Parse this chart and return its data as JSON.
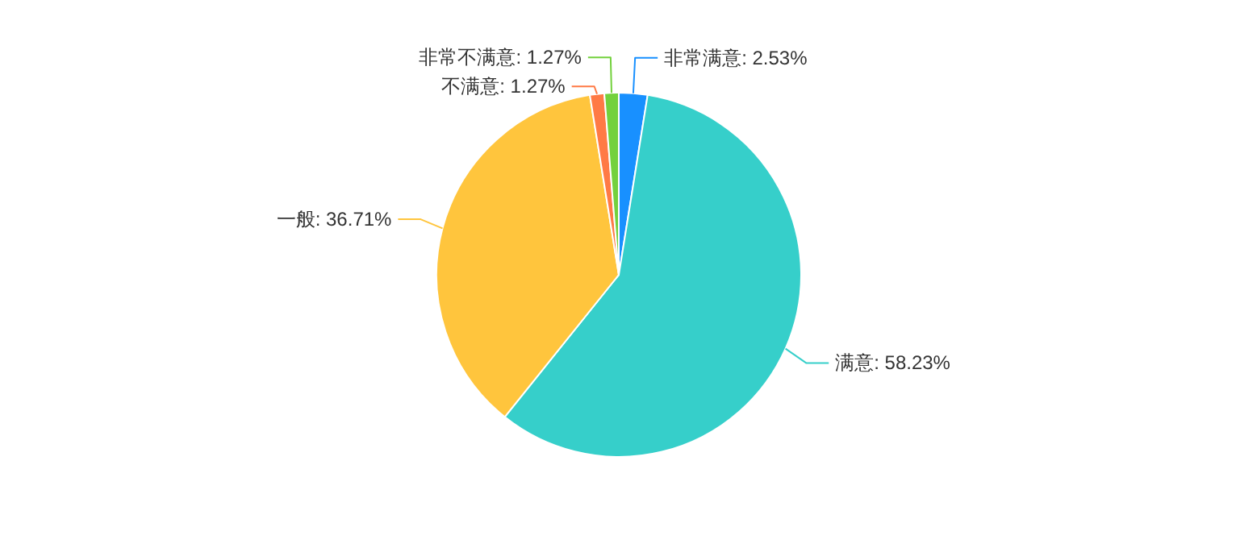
{
  "chart_data": {
    "type": "pie",
    "categories": [
      "非常满意",
      "满意",
      "一般",
      "不满意",
      "非常不满意"
    ],
    "values": [
      2.53,
      58.23,
      36.71,
      1.27,
      1.27
    ],
    "value_labels": [
      "2.53%",
      "58.23%",
      "36.71%",
      "1.27%",
      "1.27%"
    ],
    "colors": [
      "#1890ff",
      "#36cfca",
      "#ffc53d",
      "#ff7a45",
      "#73d13d"
    ]
  }
}
